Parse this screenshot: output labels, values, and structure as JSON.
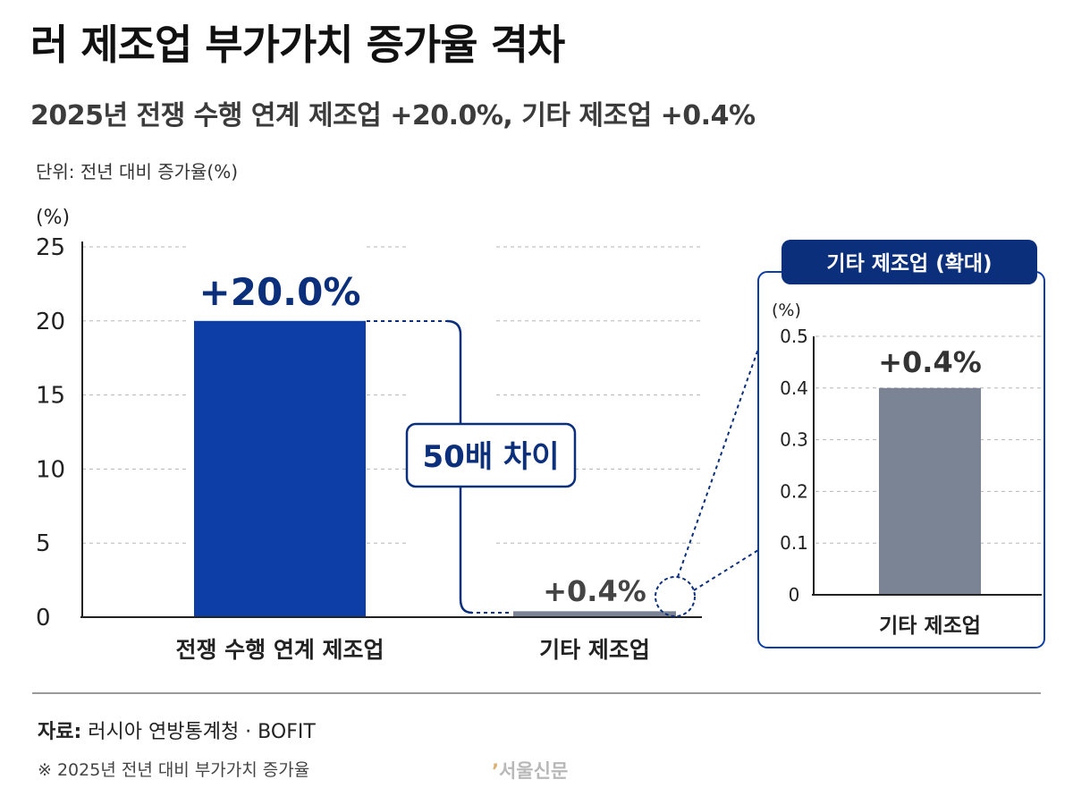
{
  "title": "러 제조업 부가가치 증가율 격차",
  "subtitle": "2025년 전쟁 수행 연계 제조업 +20.0%, 기타 제조업 +0.4%",
  "unit_label": "단위: 전년 대비 증가율(%)",
  "footer": {
    "source_prefix": "자료:",
    "source_text": " 러시아 연방통계청 · BOFIT",
    "note": "※ 2025년 전년 대비 부가가치 증가율",
    "logo_mark": "’",
    "logo_text": "서울신문"
  },
  "colors": {
    "war_bar": "#0d3ea8",
    "other_bar": "#7b8494",
    "accent_navy": "#0b2f7a",
    "grid": "#b5b5b5"
  },
  "chart_data": [
    {
      "type": "bar",
      "categories": [
        "전쟁 수행 연계 제조업",
        "기타 제조업"
      ],
      "values": [
        20.0,
        0.4
      ],
      "data_labels": [
        "+20.0%",
        "+0.4%"
      ],
      "ylabel": "(%)",
      "ylim": [
        0,
        25
      ],
      "yticks": [
        "0",
        "5",
        "10",
        "15",
        "20",
        "25"
      ],
      "grid": true,
      "annotation": "50배 차이"
    },
    {
      "type": "bar",
      "title": "기타 제조업 (확대)",
      "categories": [
        "기타 제조업"
      ],
      "values": [
        0.4
      ],
      "data_labels": [
        "+0.4%"
      ],
      "ylabel": "(%)",
      "ylim": [
        0,
        0.5
      ],
      "yticks": [
        "0",
        "0.1",
        "0.2",
        "0.3",
        "0.4",
        "0.5"
      ],
      "grid": true
    }
  ]
}
